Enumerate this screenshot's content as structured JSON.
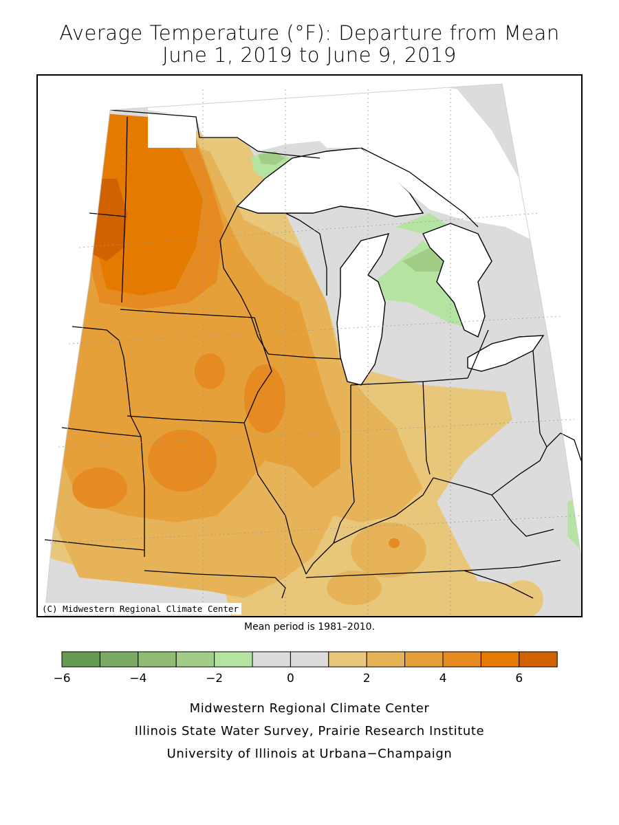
{
  "title": {
    "line1": "Average Temperature (°F): Departure from Mean",
    "line2": "June 1, 2019 to June 9, 2019"
  },
  "map": {
    "copyright": "(C) Midwestern Regional Climate Center",
    "land_color": "#dcdcdc",
    "water_color": "#ffffff",
    "region": "Upper Midwest / Great Lakes"
  },
  "mean_note": "Mean period is 1981–2010.",
  "legend": {
    "bins": [
      {
        "from": -6,
        "to": -5,
        "color": "#679a52"
      },
      {
        "from": -5,
        "to": -4,
        "color": "#7aaa63"
      },
      {
        "from": -4,
        "to": -3,
        "color": "#8fbb74"
      },
      {
        "from": -3,
        "to": -2,
        "color": "#a2cd88"
      },
      {
        "from": -2,
        "to": -1,
        "color": "#b5e3a1"
      },
      {
        "from": -1,
        "to": 0,
        "color": "#dcdcdc"
      },
      {
        "from": 0,
        "to": 1,
        "color": "#dcdcdc"
      },
      {
        "from": 1,
        "to": 2,
        "color": "#e8c77a"
      },
      {
        "from": 2,
        "to": 3,
        "color": "#e6b358"
      },
      {
        "from": 3,
        "to": 4,
        "color": "#e6a03a"
      },
      {
        "from": 4,
        "to": 5,
        "color": "#e68a22"
      },
      {
        "from": 5,
        "to": 6,
        "color": "#e57a00"
      },
      {
        "from": 6,
        "to": 7,
        "color": "#d16200"
      }
    ],
    "tick_labels": [
      "−6",
      "−4",
      "−2",
      "0",
      "2",
      "4",
      "6"
    ]
  },
  "credits": [
    "Midwestern Regional Climate Center",
    "Illinois State Water Survey, Prairie Research Institute",
    "University of Illinois at Urbana−Champaign"
  ]
}
